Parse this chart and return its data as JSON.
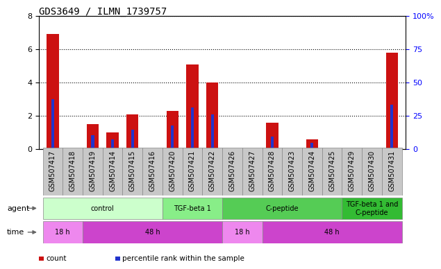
{
  "title": "GDS3649 / ILMN_1739757",
  "samples": [
    "GSM507417",
    "GSM507418",
    "GSM507419",
    "GSM507414",
    "GSM507415",
    "GSM507416",
    "GSM507420",
    "GSM507421",
    "GSM507422",
    "GSM507426",
    "GSM507427",
    "GSM507428",
    "GSM507423",
    "GSM507424",
    "GSM507425",
    "GSM507429",
    "GSM507430",
    "GSM507431"
  ],
  "count_values": [
    6.9,
    0.0,
    1.5,
    1.0,
    2.1,
    0.0,
    2.3,
    5.1,
    4.0,
    0.0,
    0.0,
    1.6,
    0.0,
    0.6,
    0.0,
    0.0,
    0.0,
    5.8
  ],
  "percentile_values": [
    37.5,
    0.0,
    10.5,
    7.5,
    14.5,
    0.0,
    17.5,
    31.0,
    26.0,
    0.0,
    0.0,
    9.5,
    0.0,
    4.5,
    0.0,
    0.0,
    0.0,
    33.5
  ],
  "ylim_left": [
    0,
    8
  ],
  "ylim_right": [
    0,
    100
  ],
  "yticks_left": [
    0,
    2,
    4,
    6,
    8
  ],
  "yticks_right": [
    0,
    25,
    50,
    75,
    100
  ],
  "ytick_right_labels": [
    "0",
    "25",
    "50",
    "75",
    "100%"
  ],
  "bar_color": "#cc1111",
  "pct_color": "#2233cc",
  "agent_groups": [
    {
      "label": "control",
      "start": 0,
      "end": 5,
      "color": "#ccffcc"
    },
    {
      "label": "TGF-beta 1",
      "start": 6,
      "end": 8,
      "color": "#88ee88"
    },
    {
      "label": "C-peptide",
      "start": 9,
      "end": 14,
      "color": "#55cc55"
    },
    {
      "label": "TGF-beta 1 and\nC-peptide",
      "start": 15,
      "end": 17,
      "color": "#33bb33"
    }
  ],
  "time_groups": [
    {
      "label": "18 h",
      "start": 0,
      "end": 1,
      "color": "#ee88ee"
    },
    {
      "label": "48 h",
      "start": 2,
      "end": 8,
      "color": "#cc44cc"
    },
    {
      "label": "18 h",
      "start": 9,
      "end": 10,
      "color": "#ee88ee"
    },
    {
      "label": "48 h",
      "start": 11,
      "end": 17,
      "color": "#cc44cc"
    }
  ],
  "legend_items": [
    {
      "label": "count",
      "color": "#cc1111"
    },
    {
      "label": "percentile rank within the sample",
      "color": "#2233cc"
    }
  ],
  "title_fontsize": 10,
  "axis_fontsize": 8,
  "tick_fontsize": 7,
  "sample_gray": "#c8c8c8",
  "sample_border": "#888888"
}
